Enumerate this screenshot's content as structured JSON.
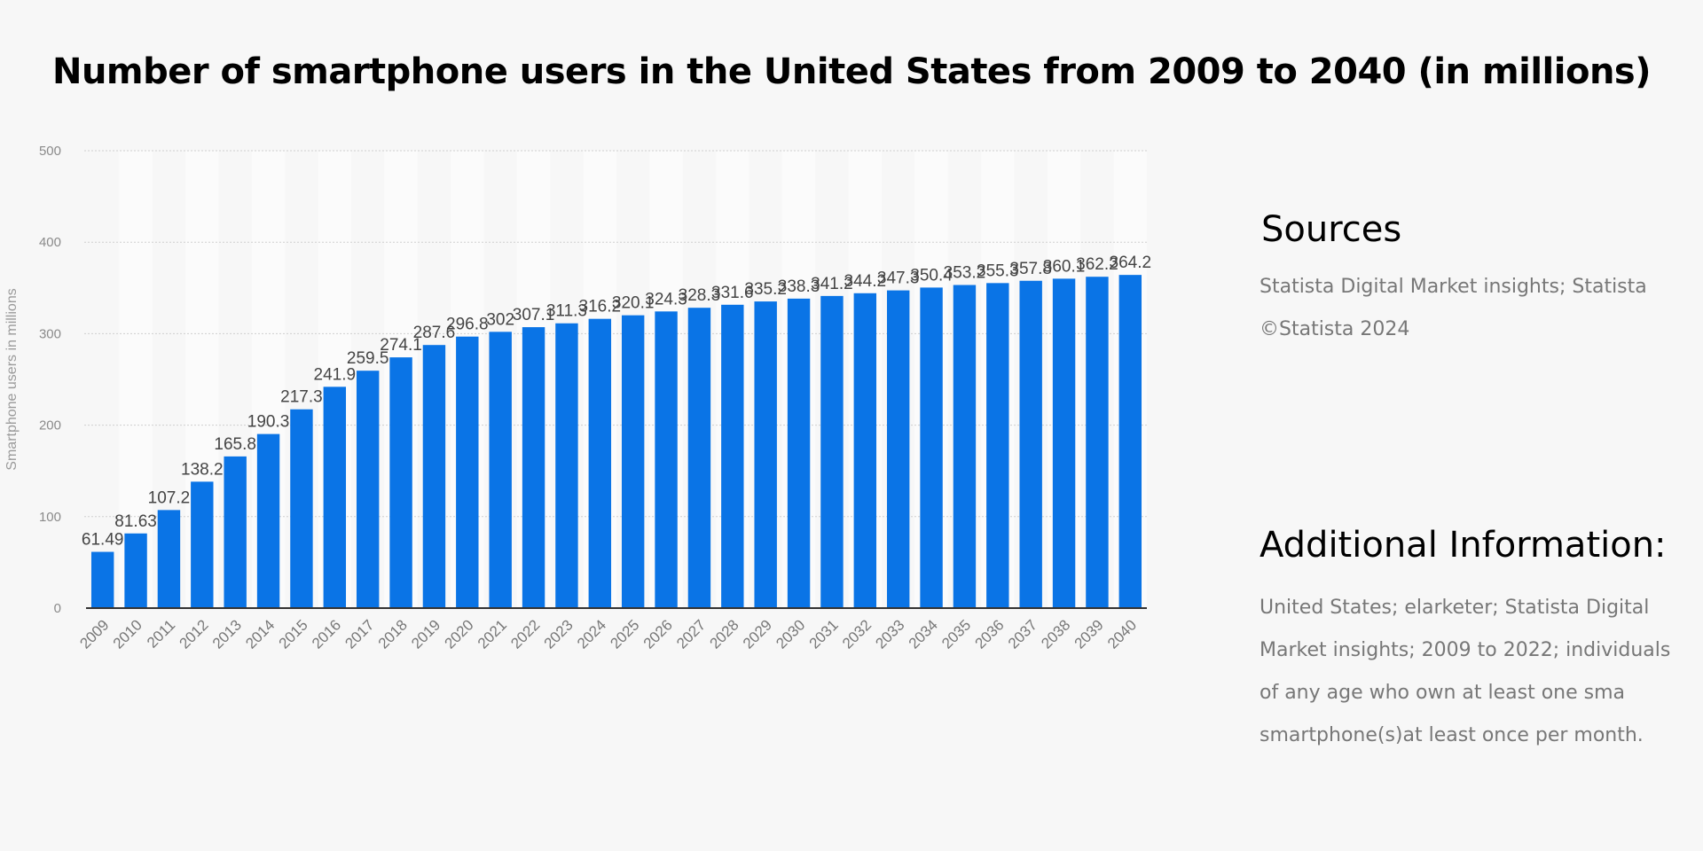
{
  "page": {
    "title": "Number of smartphone users in the United States from 2009 to 2040 (in millions)"
  },
  "sources": {
    "heading": "Sources",
    "lines": [
      "Statista Digital Market insights; Statista",
      "©Statista 2024"
    ]
  },
  "additional_info": {
    "heading": "Additional Information:",
    "lines": [
      "United States; elarketer; Statista Digital",
      "Market insights; 2009 to 2022; individuals",
      "of any age who own at least one sma",
      "smartphone(s)at least once per month."
    ]
  },
  "chart_data": {
    "type": "bar",
    "title": "Number of smartphone users in the United States from 2009 to 2040 (in millions)",
    "xlabel": "",
    "ylabel": "Smartphone users in millions",
    "ylim": [
      0,
      500
    ],
    "yticks": [
      0,
      100,
      200,
      300,
      400,
      500
    ],
    "grid": true,
    "bar_color": "#0a74e6",
    "categories": [
      "2009",
      "2010",
      "2011",
      "2012",
      "2013",
      "2014",
      "2015",
      "2016",
      "2017",
      "2018",
      "2019",
      "2020",
      "2021",
      "2022",
      "2023",
      "2024",
      "2025",
      "2026",
      "2027",
      "2028",
      "2029",
      "2030",
      "2031",
      "2032",
      "2033",
      "2034",
      "2035",
      "2036",
      "2037",
      "2038",
      "2039",
      "2040"
    ],
    "values": [
      61.49,
      81.63,
      107.2,
      138.2,
      165.8,
      190.3,
      217.3,
      241.9,
      259.5,
      274.1,
      287.6,
      296.8,
      302,
      307.1,
      311.3,
      316.2,
      320.1,
      324.3,
      328.3,
      331.6,
      335.2,
      338.3,
      341.2,
      344.2,
      347.3,
      350.4,
      353.2,
      355.3,
      357.8,
      360.1,
      362.2,
      364.2
    ],
    "data_labels": [
      "61.49",
      "81.63",
      "107.2",
      "138.2",
      "165.8",
      "190.3",
      "217.3",
      "241.9",
      "259.5",
      "274.1",
      "287.6",
      "296.8",
      "302",
      "307.1",
      "311.3",
      "316.2",
      "320.1",
      "324.3",
      "328.3",
      "331.6",
      "335.2",
      "338.3",
      "341.2",
      "344.2",
      "347.3",
      "350.4",
      "353.2",
      "355.3",
      "357.8",
      "360.1",
      "362.2",
      "364.2"
    ]
  }
}
